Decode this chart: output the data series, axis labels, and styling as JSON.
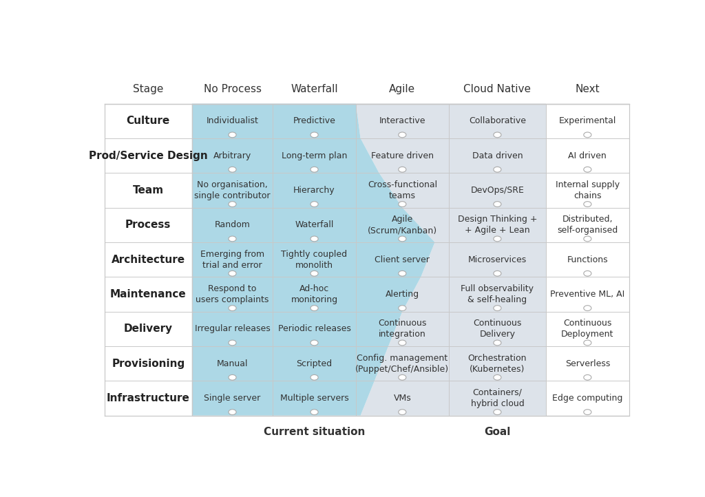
{
  "columns": [
    "Stage",
    "No Process",
    "Waterfall",
    "Agile",
    "Cloud Native",
    "Next"
  ],
  "rows": [
    {
      "stage": "Culture",
      "values": [
        "Individualist",
        "Predictive",
        "Interactive",
        "Collaborative",
        "Experimental"
      ]
    },
    {
      "stage": "Prod/Service Design",
      "values": [
        "Arbitrary",
        "Long-term plan",
        "Feature driven",
        "Data driven",
        "AI driven"
      ]
    },
    {
      "stage": "Team",
      "values": [
        "No organisation,\nsingle contributor",
        "Hierarchy",
        "Cross-functional\nteams",
        "DevOps/SRE",
        "Internal supply\nchains"
      ]
    },
    {
      "stage": "Process",
      "values": [
        "Random",
        "Waterfall",
        "Agile\n(Scrum/Kanban)",
        "Design Thinking +\n+ Agile + Lean",
        "Distributed,\nself-organised"
      ]
    },
    {
      "stage": "Architecture",
      "values": [
        "Emerging from\ntrial and error",
        "Tightly coupled\nmonolith",
        "Client server",
        "Microservices",
        "Functions"
      ]
    },
    {
      "stage": "Maintenance",
      "values": [
        "Respond to\nusers complaints",
        "Ad-hoc\nmonitoring",
        "Alerting",
        "Full observability\n& self-healing",
        "Preventive ML, AI"
      ]
    },
    {
      "stage": "Delivery",
      "values": [
        "Irregular releases",
        "Periodic releases",
        "Continuous\nintegration",
        "Continuous\nDelivery",
        "Continuous\nDeployment"
      ]
    },
    {
      "stage": "Provisioning",
      "values": [
        "Manual",
        "Scripted",
        "Config. management\n(Puppet/Chef/Ansible)",
        "Orchestration\n(Kubernetes)",
        "Serverless"
      ]
    },
    {
      "stage": "Infrastructure",
      "values": [
        "Single server",
        "Multiple servers",
        "VMs",
        "Containers/\nhybrid cloud",
        "Edge computing"
      ]
    }
  ],
  "blue_color": "#ADD8E6",
  "gray_color": "#DDE3EA",
  "current_label": "Current situation",
  "goal_label": "Goal",
  "bg_color": "#FFFFFF",
  "header_fontsize": 11,
  "cell_fontsize": 9,
  "stage_fontsize": 11
}
